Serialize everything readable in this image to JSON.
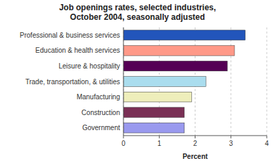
{
  "chart_data": {
    "type": "bar",
    "orientation": "horizontal",
    "title": "Job openings rates, selected industries,\nOctober 2004, seasonally adjusted",
    "categories": [
      "Government",
      "Construction",
      "Manufacturing",
      "Trade, transportation, & utilities",
      "Leisure & hospitality",
      "Education & health services",
      "Professional & business services"
    ],
    "values": [
      1.7,
      1.7,
      1.9,
      2.3,
      2.9,
      3.1,
      3.4
    ],
    "colors": [
      "#9999ee",
      "#7a3055",
      "#eeeebb",
      "#aaddee",
      "#550055",
      "#ff9988",
      "#2255bb"
    ],
    "xlim": [
      0,
      4
    ],
    "xticks": [
      0,
      1,
      2,
      3,
      4
    ],
    "xlabel": "Percent",
    "grid": true
  }
}
